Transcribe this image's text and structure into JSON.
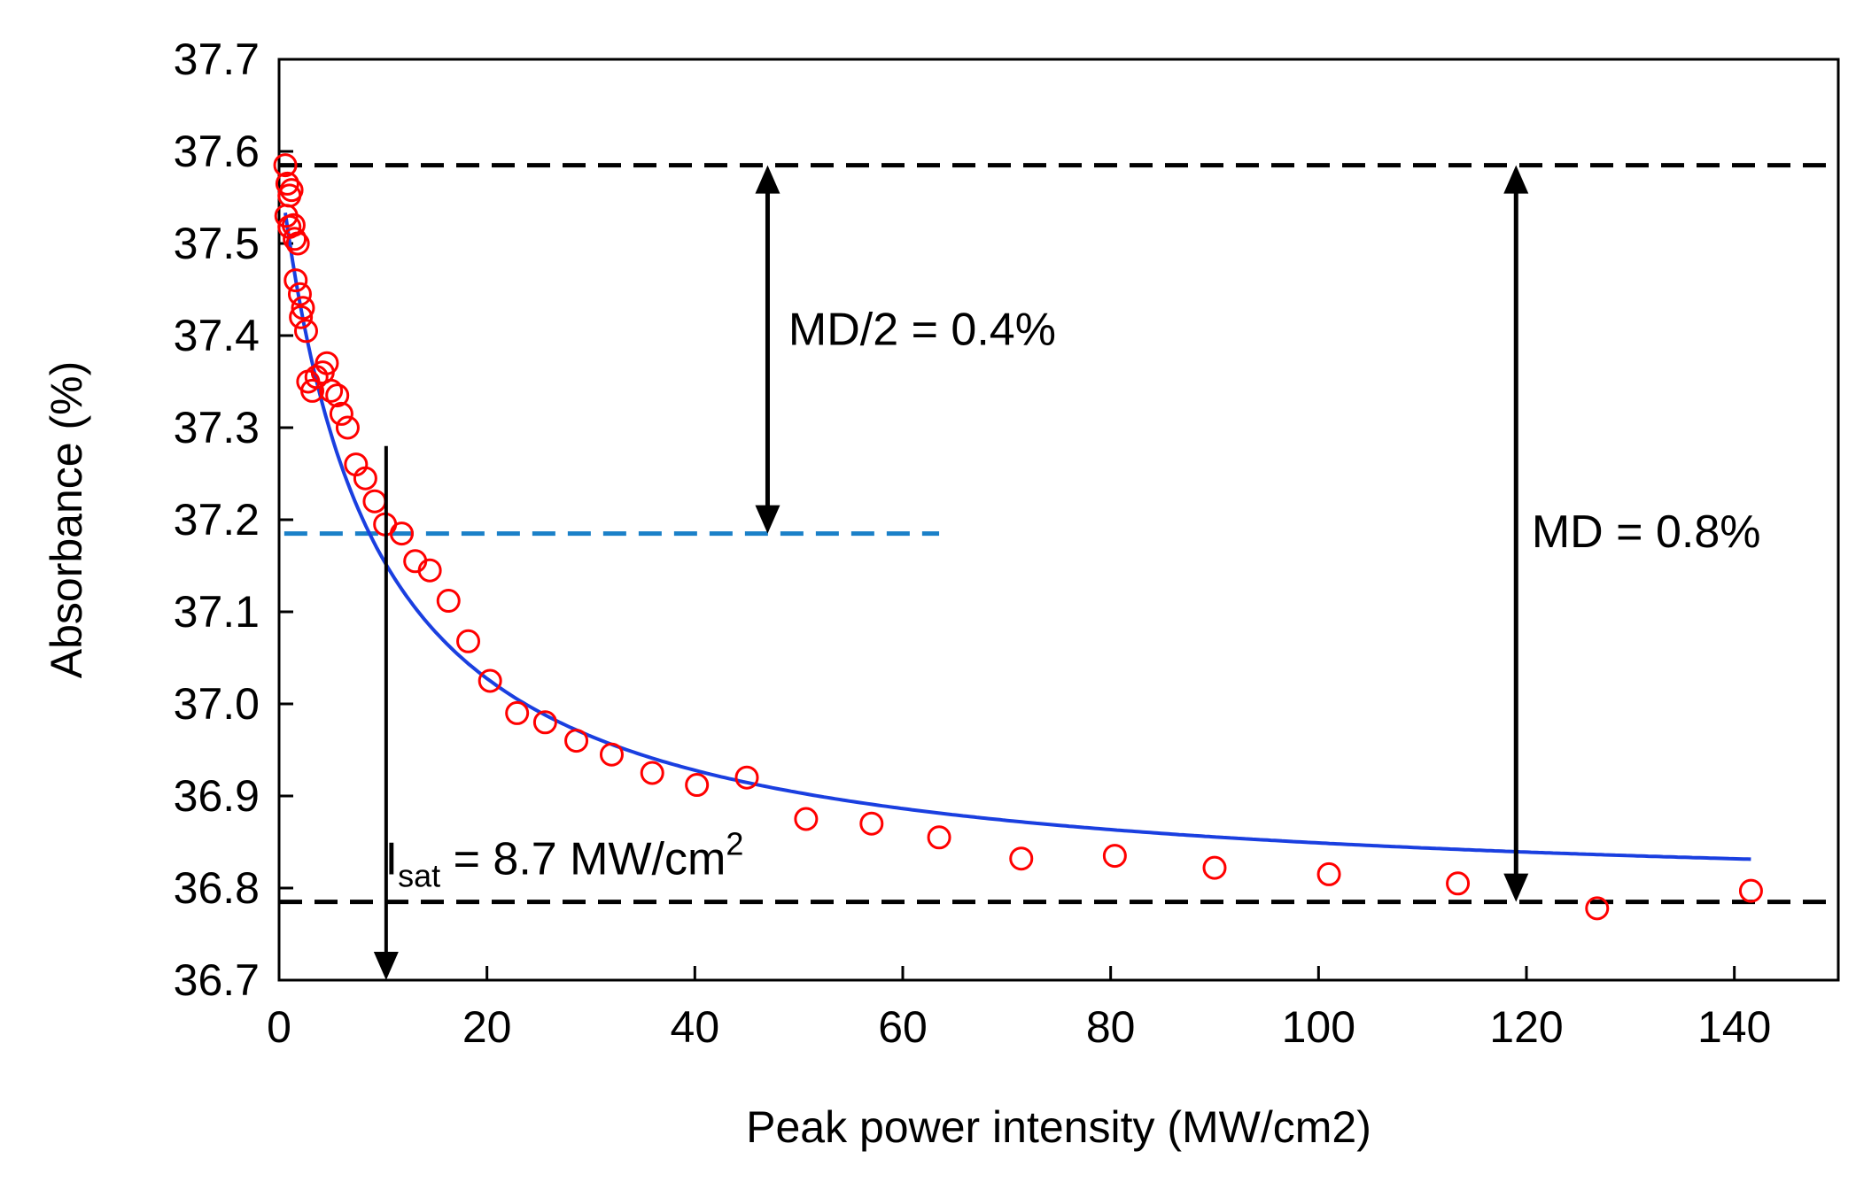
{
  "chart_data": {
    "type": "scatter",
    "title": "",
    "xlabel": "Peak power intensity (MW/cm2)",
    "ylabel": "Absorbance (%)",
    "xlim": [
      0,
      150
    ],
    "ylim": [
      36.7,
      37.7
    ],
    "x_ticks": [
      "0",
      "20",
      "40",
      "60",
      "80",
      "100",
      "120",
      "140"
    ],
    "y_ticks": [
      "36.7",
      "36.8",
      "36.9",
      "37.0",
      "37.1",
      "37.2",
      "37.3",
      "37.4",
      "37.5",
      "37.6",
      "37.7"
    ],
    "grid": false,
    "series": [
      {
        "kind": "scatter",
        "marker": "open-circle",
        "color": "#ff0000",
        "points": [
          [
            0.6,
            37.585
          ],
          [
            0.8,
            37.565
          ],
          [
            1.0,
            37.552
          ],
          [
            1.2,
            37.558
          ],
          [
            0.7,
            37.53
          ],
          [
            1.0,
            37.518
          ],
          [
            1.4,
            37.52
          ],
          [
            1.5,
            37.505
          ],
          [
            1.8,
            37.5
          ],
          [
            1.6,
            37.46
          ],
          [
            2.0,
            37.445
          ],
          [
            2.3,
            37.43
          ],
          [
            2.1,
            37.42
          ],
          [
            2.6,
            37.405
          ],
          [
            2.8,
            37.35
          ],
          [
            3.2,
            37.34
          ],
          [
            3.6,
            37.355
          ],
          [
            4.2,
            37.36
          ],
          [
            4.6,
            37.37
          ],
          [
            5.0,
            37.34
          ],
          [
            5.6,
            37.335
          ],
          [
            6.0,
            37.315
          ],
          [
            6.6,
            37.3
          ],
          [
            7.4,
            37.26
          ],
          [
            8.3,
            37.245
          ],
          [
            9.2,
            37.22
          ],
          [
            10.2,
            37.195
          ],
          [
            11.8,
            37.185
          ],
          [
            13.1,
            37.155
          ],
          [
            14.5,
            37.145
          ],
          [
            16.3,
            37.112
          ],
          [
            18.2,
            37.068
          ],
          [
            20.3,
            37.025
          ],
          [
            22.9,
            36.99
          ],
          [
            25.6,
            36.98
          ],
          [
            28.6,
            36.96
          ],
          [
            32.0,
            36.945
          ],
          [
            35.9,
            36.925
          ],
          [
            40.2,
            36.912
          ],
          [
            45.0,
            36.92
          ],
          [
            50.7,
            36.875
          ],
          [
            57.0,
            36.87
          ],
          [
            63.5,
            36.855
          ],
          [
            71.4,
            36.832
          ],
          [
            80.4,
            36.835
          ],
          [
            90.0,
            36.822
          ],
          [
            101.0,
            36.815
          ],
          [
            113.4,
            36.805
          ],
          [
            126.8,
            36.778
          ],
          [
            141.6,
            36.797
          ]
        ]
      },
      {
        "kind": "fit-line",
        "color": "#1a3fe0",
        "model": {
          "A0": 36.785,
          "MD": 0.8,
          "Isat": 8.7
        },
        "x_range": [
          0.6,
          141.6
        ]
      }
    ],
    "reference_lines": [
      {
        "kind": "hline",
        "y": 37.585,
        "x_from": 0,
        "x_to": 150,
        "color": "#000000",
        "dash": true
      },
      {
        "kind": "hline",
        "y": 36.785,
        "x_from": 0,
        "x_to": 150,
        "color": "#000000",
        "dash": true
      },
      {
        "kind": "hline",
        "y": 37.185,
        "x_from": 0.5,
        "x_to": 63.5,
        "color": "#1a80c8",
        "dash": true
      }
    ],
    "arrows": [
      {
        "kind": "double",
        "x": 47,
        "y1": 37.585,
        "y2": 37.185
      },
      {
        "kind": "double",
        "x": 119,
        "y1": 37.585,
        "y2": 36.785
      },
      {
        "kind": "single",
        "x": 10.3,
        "y1": 37.28,
        "y2": 36.7
      }
    ],
    "annotations": [
      {
        "id": "md-half",
        "text": "MD/2 = 0.4%",
        "x": 49,
        "y": 37.39
      },
      {
        "id": "md",
        "text": "MD = 0.8%",
        "x": 120.5,
        "y": 37.17
      },
      {
        "id": "isat",
        "prefix": "I",
        "sub": "sat",
        "main": " = 8.7 MW/cm",
        "sup": "2",
        "x": 10.2,
        "y": 36.815
      }
    ]
  }
}
